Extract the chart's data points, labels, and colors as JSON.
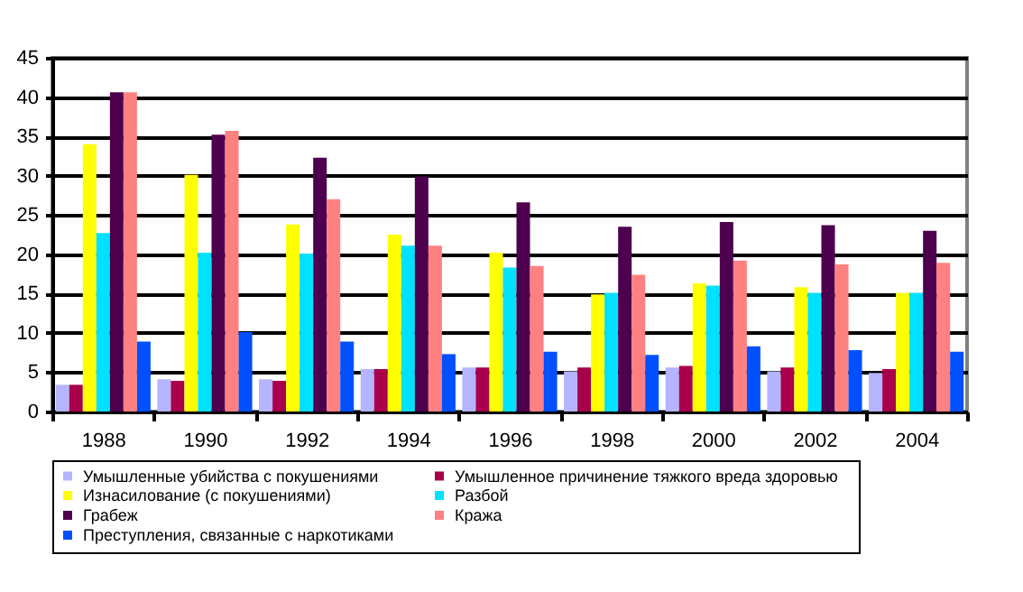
{
  "chart_data": {
    "type": "bar",
    "categories": [
      "1988",
      "1990",
      "1992",
      "1994",
      "1996",
      "1998",
      "2000",
      "2002",
      "2004"
    ],
    "series": [
      {
        "name": "Умышленные убийства с покушениями",
        "color": "#b4b4ff",
        "values": [
          3.4,
          4.1,
          4.1,
          5.4,
          5.6,
          5.1,
          5.6,
          5.1,
          4.9
        ]
      },
      {
        "name": "Умышленное  причинение  тяжкого  вреда здоровью",
        "color": "#a8004a",
        "values": [
          3.4,
          3.9,
          3.9,
          5.4,
          5.6,
          5.6,
          5.8,
          5.6,
          5.4
        ]
      },
      {
        "name": "Изнасилование (с покушениями)",
        "color": "#ffff00",
        "values": [
          34,
          30.1,
          23.8,
          22.5,
          20.2,
          14.9,
          16.3,
          15.8,
          15.1
        ]
      },
      {
        "name": "Разбой",
        "color": "#00e1ff",
        "values": [
          22.7,
          20.2,
          20.1,
          21.1,
          18.3,
          15.1,
          16,
          15.1,
          15.1
        ]
      },
      {
        "name": "Грабеж",
        "color": "#4d004d",
        "values": [
          40.6,
          35.2,
          32.3,
          29.9,
          26.6,
          23.5,
          24.1,
          23.7,
          23
        ]
      },
      {
        "name": "Кража",
        "color": "#ff8080",
        "values": [
          40.6,
          35.7,
          27,
          21.1,
          18.5,
          17.4,
          19.2,
          18.7,
          18.9
        ]
      },
      {
        "name": "Преступления, связанные с наркотиками",
        "color": "#0050ff",
        "values": [
          8.9,
          10.1,
          8.9,
          7.3,
          7.6,
          7.2,
          8.3,
          7.8,
          7.6
        ]
      }
    ],
    "ylim": [
      0,
      45
    ],
    "yticks": [
      0,
      5,
      10,
      15,
      20,
      25,
      30,
      35,
      40,
      45
    ],
    "grid": "y",
    "legend": "bottom"
  }
}
